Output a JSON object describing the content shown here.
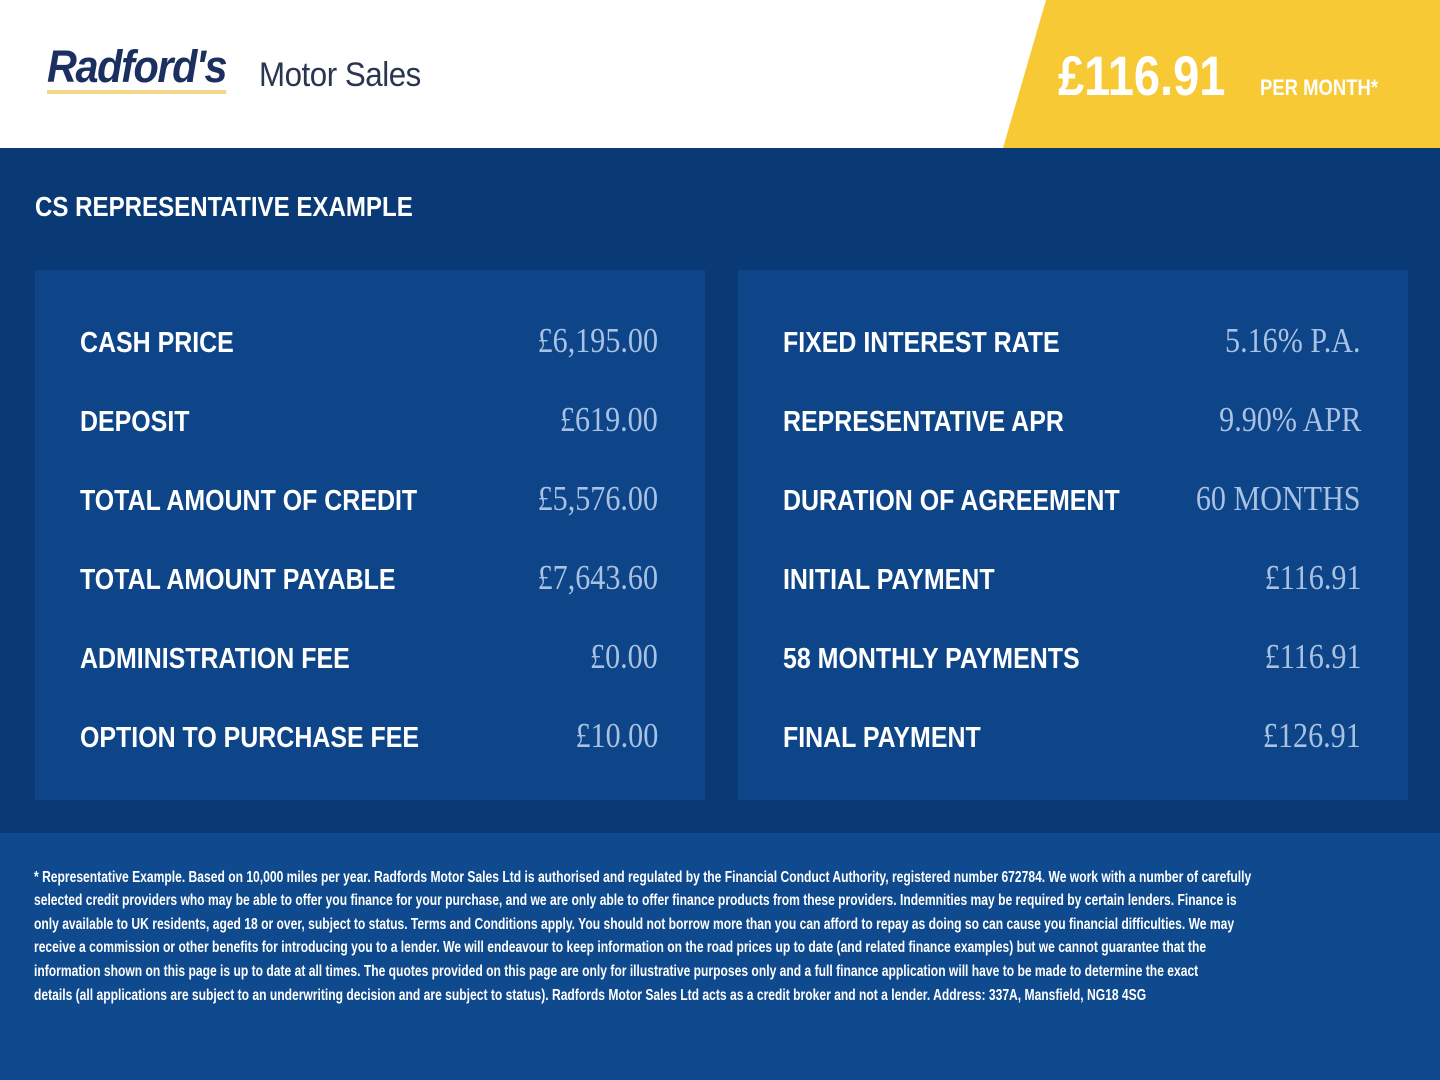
{
  "colors": {
    "navy": "#0a3a75",
    "panel": "#0d4588",
    "footer": "#0f4a8e",
    "accent_yellow": "#f7c935",
    "value_text": "#a9c1e2"
  },
  "header": {
    "logo_brand": "Radford's",
    "logo_sub": "Motor Sales",
    "price": "£116.91",
    "price_suffix": "PER MONTH*"
  },
  "main": {
    "title": "CS REPRESENTATIVE EXAMPLE",
    "left": [
      {
        "label": "CASH PRICE",
        "value": "£6,195.00"
      },
      {
        "label": "DEPOSIT",
        "value": "£619.00"
      },
      {
        "label": "TOTAL AMOUNT OF CREDIT",
        "value": "£5,576.00"
      },
      {
        "label": "TOTAL AMOUNT PAYABLE",
        "value": "£7,643.60"
      },
      {
        "label": "ADMINISTRATION FEE",
        "value": "£0.00"
      },
      {
        "label": "OPTION TO PURCHASE FEE",
        "value": "£10.00"
      }
    ],
    "right": [
      {
        "label": "FIXED INTEREST RATE",
        "value": "5.16% P.A."
      },
      {
        "label": "REPRESENTATIVE APR",
        "value": "9.90% APR"
      },
      {
        "label": "DURATION OF AGREEMENT",
        "value": "60 MONTHS"
      },
      {
        "label": "INITIAL PAYMENT",
        "value": "£116.91"
      },
      {
        "label": "58 MONTHLY PAYMENTS",
        "value": "£116.91"
      },
      {
        "label": "FINAL PAYMENT",
        "value": "£126.91"
      }
    ]
  },
  "footer": {
    "lines": [
      "* Representative Example. Based on 10,000 miles per year. Radfords Motor Sales Ltd is authorised and regulated by the Financial Conduct Authority, registered number 672784. We work with a number of carefully",
      "selected credit providers who may be able to offer you finance for your purchase, and we are only able to offer finance products from these providers. Indemnities may be required by certain lenders. Finance is",
      "only available to UK residents, aged 18 or over, subject to status. Terms and Conditions apply. You should not borrow more than you can afford to repay as doing so can cause you financial difficulties. We may",
      "receive a commission or other benefits for introducing you to a lender. We will endeavour to keep information on the road prices up to date (and related finance examples) but we cannot guarantee that the",
      "information shown on this page is up to date at all times. The quotes provided on this page are only for illustrative purposes only and a full finance application will have to be made to determine the exact",
      "details (all applications are subject to an underwriting decision and are subject to status). Radfords Motor Sales Ltd acts as a credit broker and not a lender. Address: 337A, Mansfield, NG18 4SG"
    ]
  }
}
